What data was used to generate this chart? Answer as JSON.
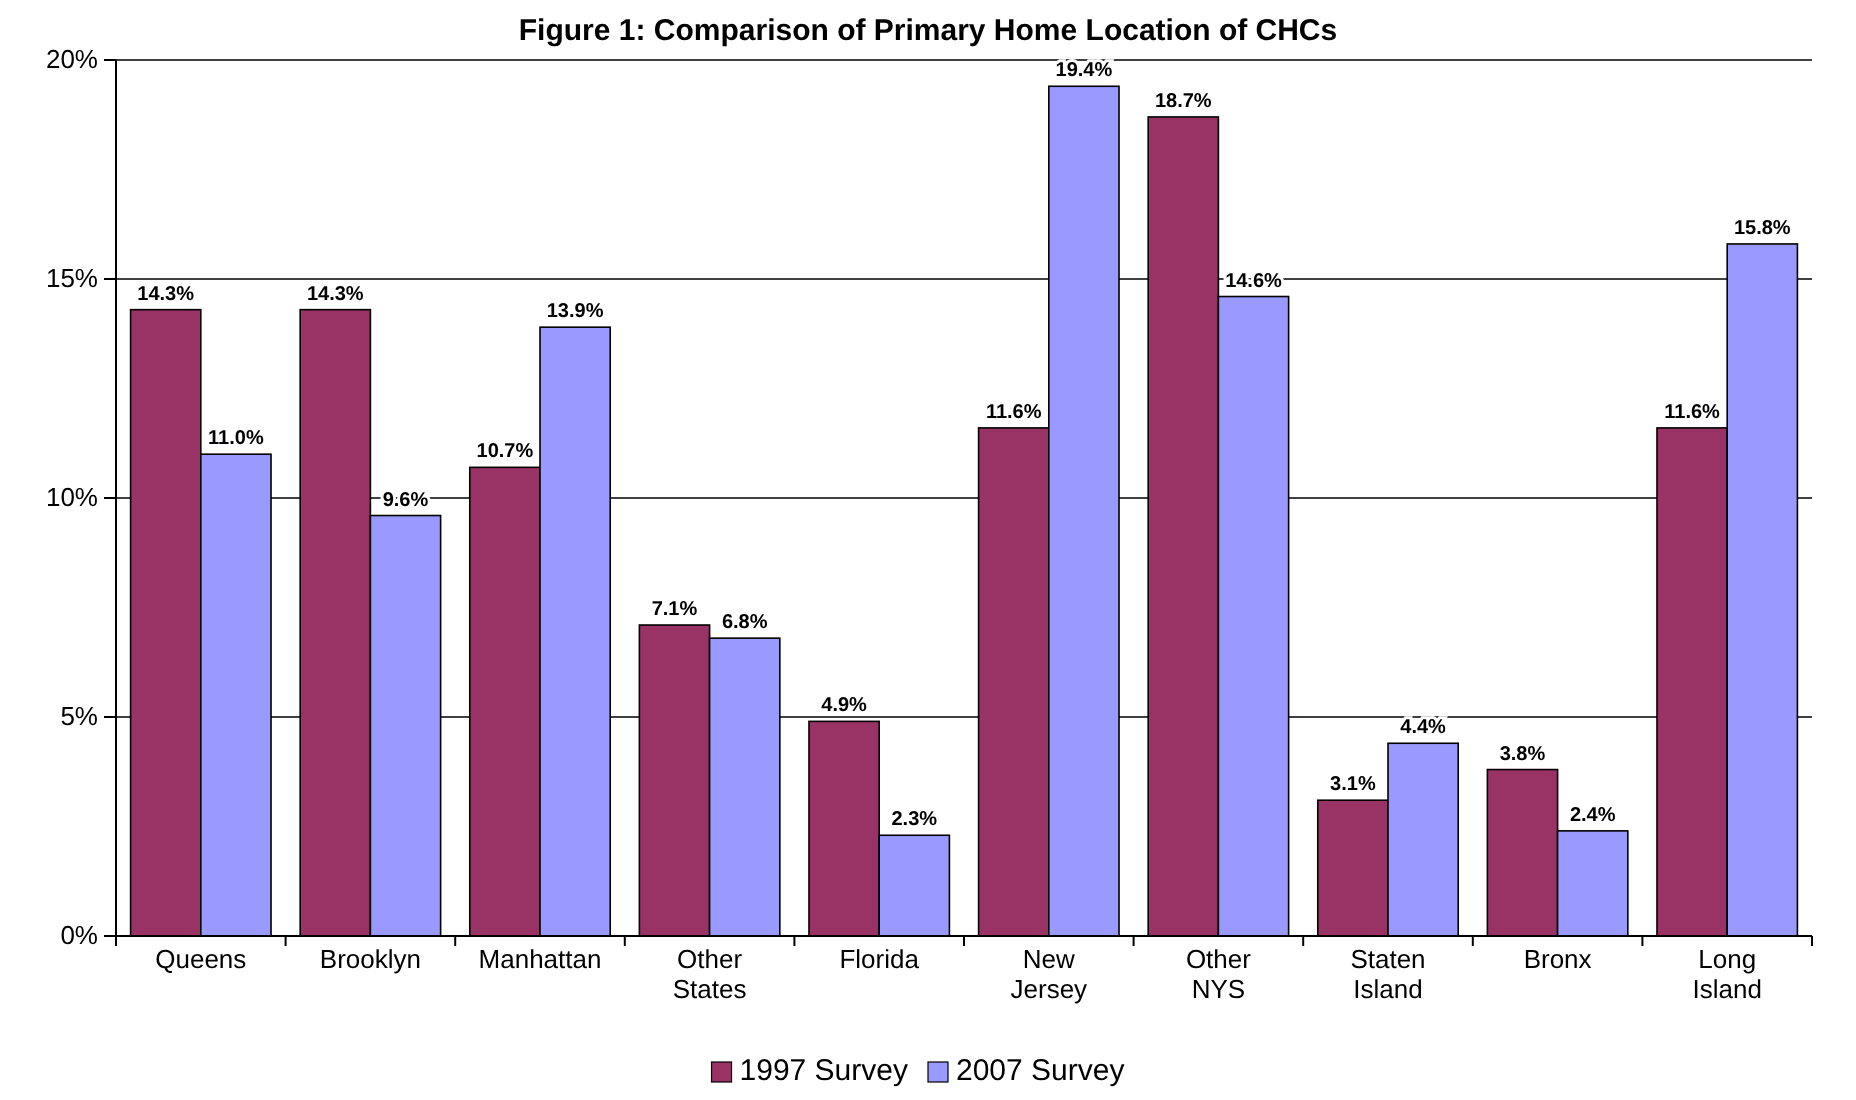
{
  "chart_data": {
    "type": "bar",
    "title": "Figure 1: Comparison of Primary Home Location of CHCs",
    "categories": [
      "Queens",
      "Brooklyn",
      "Manhattan",
      "Other States",
      "Florida",
      "New Jersey",
      "Other NYS",
      "Staten Island",
      "Bronx",
      "Long Island"
    ],
    "series": [
      {
        "name": "1997 Survey",
        "color": "#993366",
        "values": [
          14.3,
          14.3,
          10.7,
          7.1,
          4.9,
          11.6,
          18.7,
          3.1,
          3.8,
          11.6
        ]
      },
      {
        "name": "2007 Survey",
        "color": "#9999ff",
        "values": [
          11.0,
          9.6,
          13.9,
          6.8,
          2.3,
          19.4,
          14.6,
          4.4,
          2.4,
          15.8
        ]
      }
    ],
    "value_labels": [
      [
        "14.3%",
        "14.3%",
        "10.7%",
        "7.1%",
        "4.9%",
        "11.6%",
        "18.7%",
        "3.1%",
        "3.8%",
        "11.6%"
      ],
      [
        "11.0%",
        "9.6%",
        "13.9%",
        "6.8%",
        "2.3%",
        "19.4%",
        "14.6%",
        "4.4%",
        "2.4%",
        "15.8%"
      ]
    ],
    "ylim": [
      0,
      20
    ],
    "yticks": [
      {
        "value": 0,
        "label": "0%"
      },
      {
        "value": 5,
        "label": "5%"
      },
      {
        "value": 10,
        "label": "10%"
      },
      {
        "value": 15,
        "label": "15%"
      },
      {
        "value": 20,
        "label": "20%"
      }
    ],
    "grid": "y",
    "legend": "bottom"
  }
}
